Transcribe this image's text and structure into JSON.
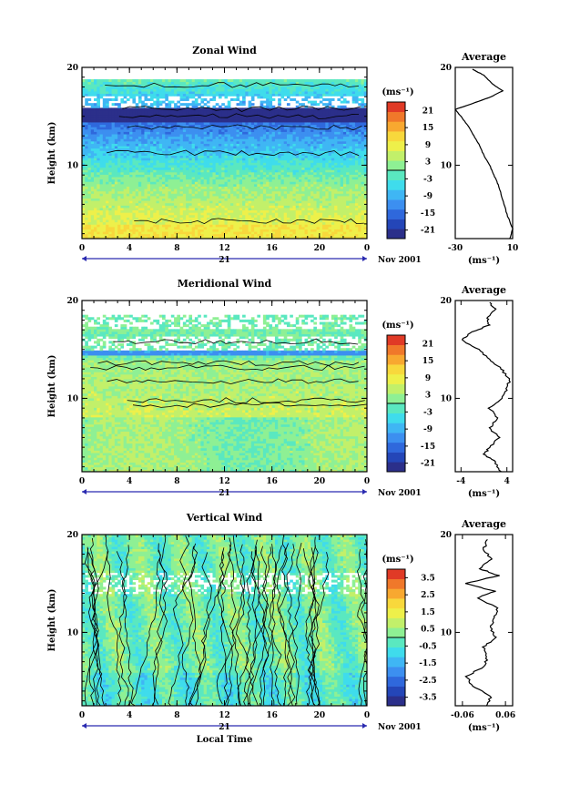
{
  "chart_data": [
    {
      "id": "zonal",
      "type": "heatmap",
      "title": "Zonal Wind",
      "ylabel": "Height (km)",
      "xlim": [
        0,
        24
      ],
      "ylim": [
        2.5,
        20
      ],
      "x_ticks": [
        "0",
        "4",
        "8",
        "12",
        "16",
        "20",
        "0"
      ],
      "y_ticks": [
        "10",
        "20"
      ],
      "day_label": "21",
      "date_label": "Nov 2001",
      "colorbar": {
        "unit": "(ms⁻¹)",
        "ticks": [
          "21",
          "15",
          "9",
          "3",
          "-3",
          "-9",
          "-15",
          "-21"
        ],
        "range": [
          -24,
          24
        ]
      },
      "average": {
        "title": "Average",
        "xlabel": "(ms⁻¹)",
        "x_ticks": [
          "-30",
          "10"
        ],
        "xlim": [
          -30,
          10
        ],
        "y_ticks": [
          "10",
          "20"
        ],
        "ylim": [
          2.5,
          20
        ],
        "profile": [
          {
            "h": 2.5,
            "v": 8
          },
          {
            "h": 3.5,
            "v": 10
          },
          {
            "h": 5,
            "v": 6
          },
          {
            "h": 6.5,
            "v": 3
          },
          {
            "h": 8,
            "v": 0
          },
          {
            "h": 9,
            "v": -3
          },
          {
            "h": 10,
            "v": -6
          },
          {
            "h": 11,
            "v": -10
          },
          {
            "h": 12,
            "v": -13
          },
          {
            "h": 13,
            "v": -17
          },
          {
            "h": 14,
            "v": -21
          },
          {
            "h": 15,
            "v": -26
          },
          {
            "h": 15.7,
            "v": -30
          },
          {
            "h": 16.3,
            "v": -18
          },
          {
            "h": 17,
            "v": -5
          },
          {
            "h": 17.6,
            "v": 3
          },
          {
            "h": 18.3,
            "v": -4
          },
          {
            "h": 19.2,
            "v": -10
          },
          {
            "h": 19.8,
            "v": -18
          }
        ]
      }
    },
    {
      "id": "meridional",
      "type": "heatmap",
      "title": "Meridional Wind",
      "ylabel": "Height (km)",
      "xlim": [
        0,
        24
      ],
      "ylim": [
        2.5,
        20
      ],
      "x_ticks": [
        "0",
        "4",
        "8",
        "12",
        "16",
        "20",
        "0"
      ],
      "y_ticks": [
        "10",
        "20"
      ],
      "day_label": "21",
      "date_label": "Nov 2001",
      "colorbar": {
        "unit": "(ms⁻¹)",
        "ticks": [
          "21",
          "15",
          "9",
          "3",
          "-3",
          "-9",
          "-15",
          "-21"
        ],
        "range": [
          -24,
          24
        ]
      },
      "average": {
        "title": "Average",
        "xlabel": "(ms⁻¹)",
        "x_ticks": [
          "-4",
          "4"
        ],
        "xlim": [
          -5,
          5
        ],
        "y_ticks": [
          "10",
          "20"
        ],
        "ylim": [
          2.5,
          20
        ],
        "profile": [
          {
            "h": 2.5,
            "v": 3
          },
          {
            "h": 3.5,
            "v": 2
          },
          {
            "h": 4.3,
            "v": 0
          },
          {
            "h": 5,
            "v": 1
          },
          {
            "h": 6,
            "v": 2.5
          },
          {
            "h": 7,
            "v": 1
          },
          {
            "h": 8,
            "v": 2.5
          },
          {
            "h": 9,
            "v": 1
          },
          {
            "h": 10,
            "v": 3
          },
          {
            "h": 11,
            "v": 4
          },
          {
            "h": 12,
            "v": 4.5
          },
          {
            "h": 13,
            "v": 3
          },
          {
            "h": 14,
            "v": 1
          },
          {
            "h": 15,
            "v": -1
          },
          {
            "h": 16,
            "v": -4
          },
          {
            "h": 16.8,
            "v": -2
          },
          {
            "h": 17.5,
            "v": 1
          },
          {
            "h": 18.2,
            "v": 0.5
          },
          {
            "h": 19,
            "v": 2
          },
          {
            "h": 19.8,
            "v": 1
          }
        ]
      }
    },
    {
      "id": "vertical",
      "type": "heatmap",
      "title": "Vertical Wind",
      "ylabel": "Height (km)",
      "xlabel": "Local Time",
      "xlim": [
        0,
        24
      ],
      "ylim": [
        2.5,
        20
      ],
      "x_ticks": [
        "0",
        "4",
        "8",
        "12",
        "16",
        "20",
        "0"
      ],
      "y_ticks": [
        "10",
        "20"
      ],
      "day_label": "21",
      "date_label": "Nov 2001",
      "colorbar": {
        "unit": "(ms⁻¹)",
        "ticks": [
          "3.5",
          "2.5",
          "1.5",
          "0.5",
          "-0.5",
          "-1.5",
          "-2.5",
          "-3.5"
        ],
        "range": [
          -4,
          4
        ]
      },
      "average": {
        "title": "Average",
        "xlabel": "(ms⁻¹)",
        "x_ticks": [
          "-0.06",
          "0.06"
        ],
        "xlim": [
          -0.08,
          0.08
        ],
        "y_ticks": [
          "10",
          "20"
        ],
        "ylim": [
          2.5,
          20
        ],
        "profile": [
          {
            "h": 2.5,
            "v": 0.01
          },
          {
            "h": 3.5,
            "v": 0.02
          },
          {
            "h": 4.5,
            "v": -0.03
          },
          {
            "h": 5.5,
            "v": -0.05
          },
          {
            "h": 6.5,
            "v": 0.0
          },
          {
            "h": 7.5,
            "v": 0.01
          },
          {
            "h": 8.5,
            "v": 0.0
          },
          {
            "h": 9.5,
            "v": 0.03
          },
          {
            "h": 10.5,
            "v": 0.02
          },
          {
            "h": 11.5,
            "v": 0.03
          },
          {
            "h": 12.5,
            "v": 0.04
          },
          {
            "h": 13.5,
            "v": -0.02
          },
          {
            "h": 14.2,
            "v": 0.03
          },
          {
            "h": 15,
            "v": -0.05
          },
          {
            "h": 15.8,
            "v": 0.04
          },
          {
            "h": 16.5,
            "v": -0.01
          },
          {
            "h": 17.5,
            "v": 0.02
          },
          {
            "h": 18.5,
            "v": 0.0
          },
          {
            "h": 19.5,
            "v": 0.01
          }
        ]
      }
    }
  ]
}
